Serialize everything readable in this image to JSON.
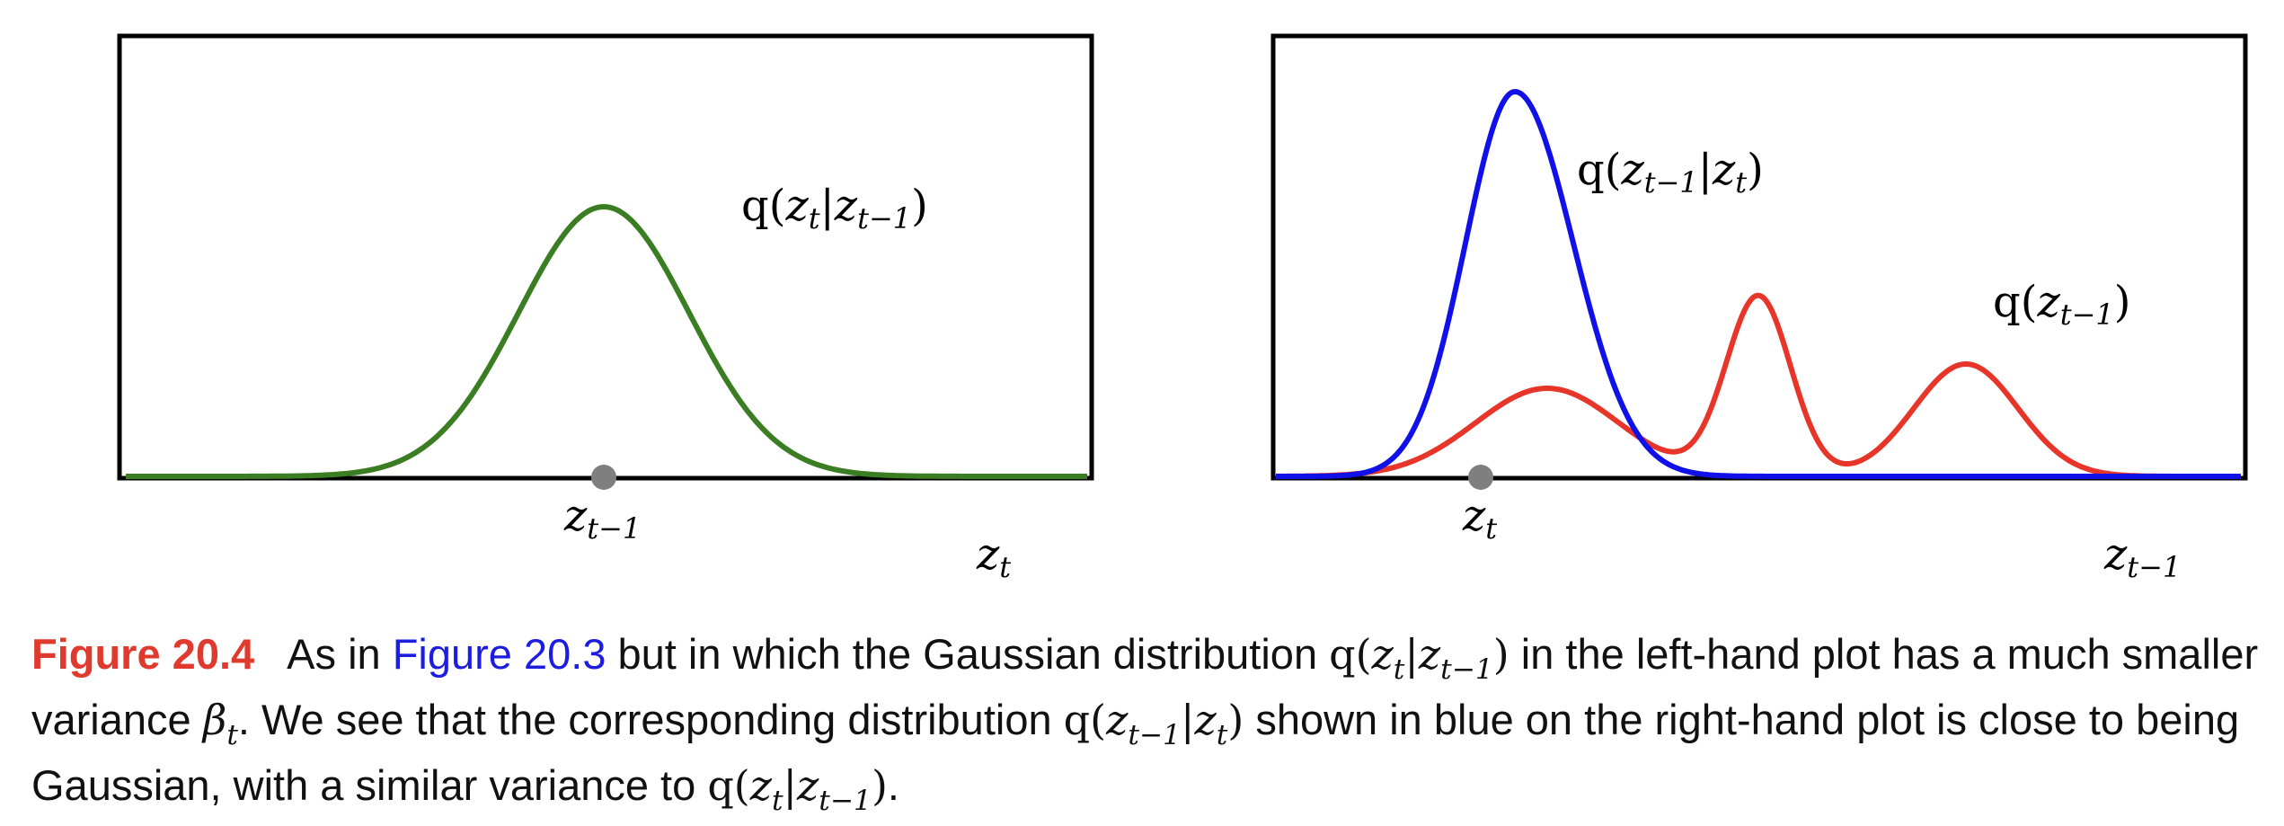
{
  "figure": {
    "left_panel": {
      "curve_label": [
        "q(",
        "z",
        "t",
        "|",
        "z",
        "t−1",
        ")"
      ],
      "point_label": [
        "z",
        "t−1"
      ],
      "axis_label": [
        "z",
        "t"
      ],
      "curve_color": "#3b7d23"
    },
    "right_panel": {
      "blue_label": [
        "q(",
        "z",
        "t−1",
        "|",
        "z",
        "t",
        ")"
      ],
      "red_label": [
        "q(",
        "z",
        "t−1",
        ")"
      ],
      "point_label": [
        "z",
        "t"
      ],
      "axis_label": [
        "z",
        "t−1"
      ],
      "blue_color": "#1010e8",
      "red_color": "#e8352a"
    },
    "point_color": "#7f7f7f"
  },
  "caption": {
    "label": "Figure 20.4",
    "text_1": "As in ",
    "ref": "Figure 20.3",
    "text_2": " but in which the Gaussian distribution ",
    "text_3": " in the left-hand plot has a much smaller variance ",
    "beta": "β",
    "beta_sub": "t",
    "text_4": ". We see that the corresponding distribution ",
    "text_5": " shown in blue on the right-hand plot is close to being Gaussian, with a similar variance to ",
    "text_6": ".",
    "q_forward": [
      "q(",
      "z",
      "t",
      "|",
      "z",
      "t−1",
      ")"
    ],
    "q_reverse": [
      "q(",
      "z",
      "t−1",
      "|",
      "z",
      "t",
      ")"
    ]
  }
}
